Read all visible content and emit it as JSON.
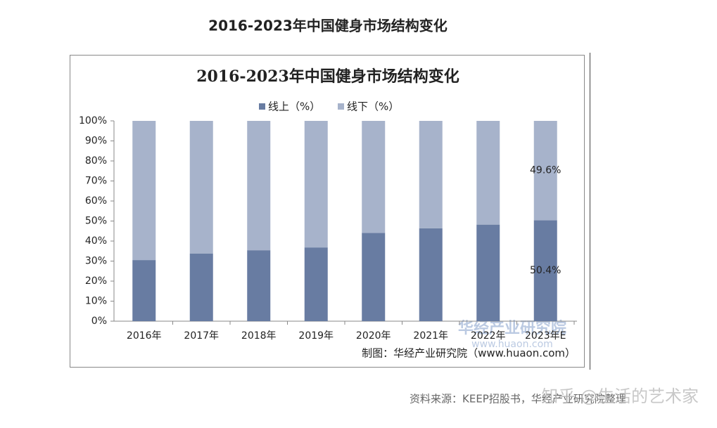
{
  "header": {
    "title": "2016-2023年中国健身市场结构变化"
  },
  "chart_data": {
    "type": "stacked-bar",
    "title": "2016-2023年中国健身市场结构变化",
    "categories": [
      "2016年",
      "2017年",
      "2018年",
      "2019年",
      "2020年",
      "2021年",
      "2022年",
      "2023年E"
    ],
    "series": [
      {
        "name": "线上（%）",
        "color": "#687ca2",
        "values": [
          30.5,
          33.8,
          35.4,
          36.8,
          44.1,
          46.4,
          48.2,
          50.4
        ],
        "value_labels": [
          null,
          null,
          null,
          null,
          null,
          null,
          null,
          "50.4%"
        ]
      },
      {
        "name": "线下（%）",
        "color": "#a7b3cb",
        "values": [
          69.5,
          66.2,
          64.6,
          63.2,
          55.9,
          53.6,
          51.8,
          49.6
        ],
        "value_labels": [
          null,
          null,
          null,
          null,
          null,
          null,
          null,
          "49.6%"
        ]
      }
    ],
    "ylim": [
      0,
      100
    ],
    "yticks": [
      {
        "value": 0,
        "label": "0%"
      },
      {
        "value": 10,
        "label": "10%"
      },
      {
        "value": 20,
        "label": "20%"
      },
      {
        "value": 30,
        "label": "30%"
      },
      {
        "value": 40,
        "label": "40%"
      },
      {
        "value": 50,
        "label": "50%"
      },
      {
        "value": 60,
        "label": "60%"
      },
      {
        "value": 70,
        "label": "70%"
      },
      {
        "value": 80,
        "label": "80%"
      },
      {
        "value": 90,
        "label": "90%"
      },
      {
        "value": 100,
        "label": "100%"
      }
    ],
    "legend": "top",
    "credit": "制图：华经产业研究院（www.huaon.com）"
  },
  "watermark": {
    "logo": "华经产业研究院",
    "url": "www.huaon.com"
  },
  "footer": {
    "source": "资料来源：KEEP招股书，华经产业研究院整理",
    "author": "知乎 @生活的艺术家"
  }
}
